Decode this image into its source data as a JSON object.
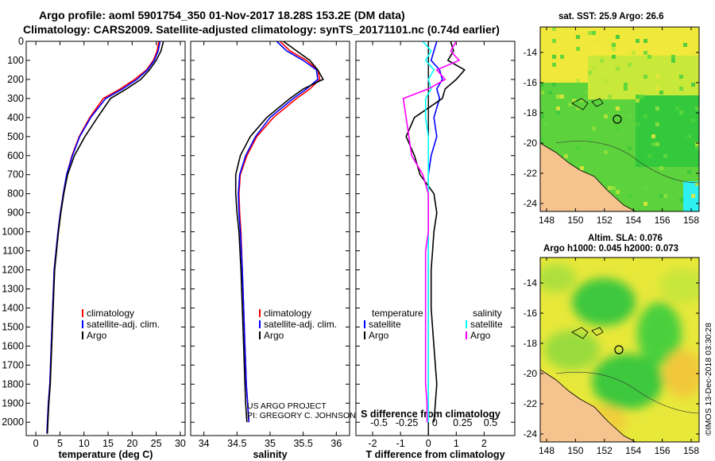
{
  "header": {
    "line1": "Argo profile: aoml 5901754_350 01-Nov-2017 18.28S 153.2E (DM data)",
    "line2": "Climatology: CARS2009. Satellite-adjusted climatology: synTS_20171101.nc (0.74d earlier)"
  },
  "colors": {
    "climatology": "#ff0000",
    "satellite": "#0000ff",
    "argo": "#000000",
    "sal_satellite": "#00ffff",
    "sal_argo": "#ff00ff"
  },
  "chart_data": [
    {
      "type": "line",
      "xlabel": "temperature (deg C)",
      "ylabel": "",
      "xlim": [
        -2,
        31
      ],
      "ylim": [
        2070,
        0
      ],
      "y_reversed": true,
      "xticks": [
        "0",
        "5",
        "10",
        "15",
        "20",
        "25",
        "30"
      ],
      "xtick_values": [
        0,
        5,
        10,
        15,
        20,
        25,
        30
      ],
      "yticks": [
        "0",
        "100",
        "200",
        "300",
        "400",
        "500",
        "600",
        "700",
        "800",
        "900",
        "1000",
        "1100",
        "1200",
        "1300",
        "1400",
        "1500",
        "1600",
        "1700",
        "1800",
        "1900",
        "2000"
      ],
      "legend": [
        "climatology",
        "satellite-adj. clim.",
        "Argo"
      ],
      "series": [
        {
          "name": "climatology",
          "x": [
            25.5,
            25.2,
            24.4,
            23.0,
            20.5,
            17.5,
            14.0,
            11.2,
            9.0,
            7.5,
            6.4,
            5.7,
            5.1,
            4.6,
            4.2,
            3.8,
            3.5,
            3.2,
            2.9,
            2.6,
            2.4,
            2.3
          ],
          "y": [
            0,
            50,
            100,
            150,
            200,
            250,
            300,
            400,
            500,
            600,
            700,
            800,
            900,
            1000,
            1100,
            1200,
            1400,
            1600,
            1800,
            1900,
            2000,
            2060
          ]
        },
        {
          "name": "satellite-adj. clim.",
          "x": [
            25.8,
            25.4,
            24.6,
            23.2,
            21.0,
            18.0,
            14.5,
            11.4,
            9.1,
            7.6,
            6.4,
            5.7,
            5.1,
            4.6,
            4.2,
            3.8,
            3.5,
            3.2,
            2.9,
            2.6,
            2.4,
            2.3
          ],
          "y": [
            0,
            50,
            100,
            150,
            200,
            250,
            300,
            400,
            500,
            600,
            700,
            800,
            900,
            1000,
            1100,
            1200,
            1400,
            1600,
            1800,
            1900,
            2000,
            2060
          ]
        },
        {
          "name": "Argo",
          "x": [
            26.5,
            26.0,
            25.0,
            23.6,
            21.8,
            18.8,
            15.5,
            12.8,
            10.2,
            8.0,
            6.6,
            5.8,
            5.2,
            4.7,
            4.3,
            3.9,
            3.6,
            3.3,
            3.0,
            2.7,
            2.5,
            2.4
          ],
          "y": [
            0,
            50,
            100,
            150,
            200,
            250,
            300,
            400,
            500,
            600,
            700,
            800,
            900,
            1000,
            1100,
            1200,
            1400,
            1600,
            1800,
            1900,
            2000,
            2060
          ]
        }
      ]
    },
    {
      "type": "line",
      "xlabel": "salinity",
      "xlim": [
        33.8,
        36.2
      ],
      "ylim": [
        2070,
        0
      ],
      "y_reversed": true,
      "xticks": [
        "34",
        "34.5",
        "35",
        "35.5",
        "36"
      ],
      "xtick_values": [
        34,
        34.5,
        35,
        35.5,
        36
      ],
      "legend": [
        "climatology",
        "satellite-adj. clim.",
        "Argo"
      ],
      "series": [
        {
          "name": "climatology",
          "x": [
            35.15,
            35.3,
            35.55,
            35.72,
            35.75,
            35.6,
            35.4,
            35.05,
            34.8,
            34.65,
            34.55,
            34.53,
            34.54,
            34.56,
            34.58,
            34.6,
            34.62,
            34.63,
            34.64,
            34.66,
            34.68
          ],
          "y": [
            0,
            50,
            100,
            150,
            200,
            250,
            300,
            400,
            500,
            600,
            700,
            800,
            900,
            1000,
            1200,
            1400,
            1600,
            1700,
            1800,
            1900,
            2000
          ]
        },
        {
          "name": "satellite-adj. clim.",
          "x": [
            35.1,
            35.25,
            35.5,
            35.7,
            35.72,
            35.55,
            35.35,
            35.0,
            34.78,
            34.63,
            34.54,
            34.52,
            34.53,
            34.55,
            34.58,
            34.6,
            34.62,
            34.63,
            34.64,
            34.66,
            34.68
          ],
          "y": [
            0,
            50,
            100,
            150,
            200,
            250,
            300,
            400,
            500,
            600,
            700,
            800,
            900,
            1000,
            1200,
            1400,
            1600,
            1700,
            1800,
            1900,
            2000
          ]
        },
        {
          "name": "Argo",
          "x": [
            35.2,
            35.4,
            35.6,
            35.72,
            35.8,
            35.5,
            35.3,
            34.95,
            34.7,
            34.55,
            34.48,
            34.48,
            34.5,
            34.53,
            34.56,
            34.58,
            34.6,
            34.61,
            34.62,
            34.63,
            34.65
          ],
          "y": [
            0,
            50,
            100,
            150,
            200,
            250,
            300,
            400,
            500,
            600,
            700,
            800,
            900,
            1000,
            1200,
            1400,
            1600,
            1700,
            1800,
            1900,
            2000
          ]
        }
      ]
    },
    {
      "type": "line",
      "xlabel": "T difference from climatology",
      "xlabel2": "S difference from climatology",
      "xlim": [
        -2.6,
        3.1
      ],
      "ylim": [
        2070,
        0
      ],
      "y_reversed": true,
      "xticks": [
        "-2",
        "-1",
        "0",
        "1",
        "2"
      ],
      "xtick_values": [
        -2,
        -1,
        0,
        1,
        2
      ],
      "xticks2": [
        "-0.5",
        "-0.25",
        "0",
        "0.25",
        "0.5"
      ],
      "xtick2_values": [
        -2,
        -1,
        0,
        1,
        2
      ],
      "legend_left_title": "temperature",
      "legend_right_title": "salinity",
      "legend": [
        "satellite",
        "Argo",
        "satellite",
        "Argo"
      ],
      "series": [
        {
          "name": "temperature satellite",
          "x": [
            0.3,
            0.2,
            0.1,
            0.4,
            0.5,
            0.3,
            0.4,
            0.2,
            0.3,
            0.1,
            0.0,
            0.0,
            0.0,
            0.0,
            0.0,
            0.0,
            0.0,
            0.0,
            0.0,
            0.0,
            0.0
          ],
          "y": [
            0,
            50,
            100,
            150,
            200,
            250,
            300,
            400,
            500,
            600,
            700,
            800,
            900,
            1000,
            1100,
            1200,
            1400,
            1600,
            1800,
            1900,
            2000
          ]
        },
        {
          "name": "temperature Argo",
          "x": [
            0.8,
            0.9,
            0.7,
            1.3,
            1.0,
            0.6,
            0.5,
            -0.5,
            -0.8,
            -0.5,
            -0.3,
            0.2,
            0.3,
            0.2,
            0.15,
            0.1,
            0.1,
            0.2,
            0.3,
            0.25,
            0.2
          ],
          "y": [
            0,
            50,
            100,
            150,
            200,
            250,
            300,
            400,
            500,
            600,
            700,
            800,
            900,
            1000,
            1100,
            1200,
            1400,
            1600,
            1800,
            1900,
            2000
          ]
        },
        {
          "name": "salinity satellite",
          "x": [
            -0.2,
            0.1,
            -0.1,
            0.2,
            0.0,
            0.1,
            -0.1,
            -0.1,
            0.0,
            0.0,
            0.0,
            0.0,
            0.0,
            0.0,
            0.0,
            0.0,
            0.0,
            0.0,
            0.0,
            0.0,
            0.0
          ],
          "y": [
            0,
            50,
            100,
            150,
            200,
            250,
            300,
            400,
            500,
            600,
            700,
            800,
            900,
            1000,
            1100,
            1200,
            1400,
            1600,
            1800,
            1900,
            2000
          ]
        },
        {
          "name": "salinity Argo",
          "x": [
            1.0,
            0.8,
            1.1,
            0.3,
            0.6,
            0.0,
            -0.9,
            -0.8,
            -0.7,
            -0.6,
            -0.2,
            0.0,
            0.0,
            0.0,
            -0.1,
            -0.1,
            -0.1,
            -0.1,
            -0.1,
            -0.05,
            -0.05
          ],
          "y": [
            0,
            50,
            100,
            150,
            200,
            250,
            300,
            400,
            500,
            600,
            700,
            800,
            900,
            1000,
            1100,
            1200,
            1400,
            1600,
            1800,
            1900,
            2000
          ]
        }
      ]
    }
  ],
  "maps": {
    "sst": {
      "title": "sat. SST: 25.9 Argo: 26.6",
      "yticks": [
        "-14",
        "-16",
        "-18",
        "-20",
        "-22",
        "-24"
      ],
      "xticks": [
        "148",
        "150",
        "152",
        "154",
        "156",
        "158"
      ]
    },
    "sla": {
      "title1": "Altim. SLA: 0.076",
      "title2": "Argo h1000: 0.045 h2000: 0.073",
      "yticks": [
        "-14",
        "-16",
        "-18",
        "-20",
        "-22",
        "-24"
      ],
      "xticks": [
        "148",
        "150",
        "152",
        "154",
        "156",
        "158"
      ]
    }
  },
  "credits": {
    "line1": "US ARGO PROJECT",
    "line2": "PI: GREGORY C. JOHNSON"
  },
  "side_stamp": "©IMOS 13-Dec-2018 03:30:28"
}
